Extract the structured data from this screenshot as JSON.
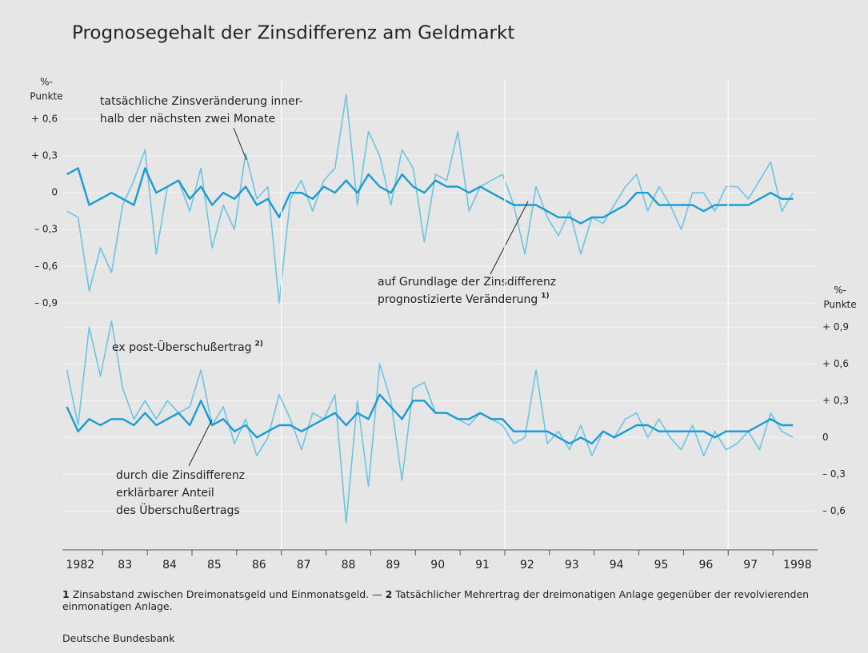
{
  "chart_data": [
    {
      "type": "line",
      "title": "Prognosegehalt der Zinsdifferenz am Geldmarkt",
      "ylabel": [
        "%-",
        "Punkte"
      ],
      "yaxis_side": "left",
      "xlim": [
        1982.1,
        1999.0
      ],
      "ylim": [
        -0.95,
        0.9
      ],
      "yticks": [
        {
          "value": 0.6,
          "label": "+ 0,6"
        },
        {
          "value": 0.3,
          "label": "+ 0,3"
        },
        0,
        {
          "value": -0.3,
          "label": "– 0,3"
        },
        {
          "value": -0.6,
          "label": "– 0,6"
        },
        {
          "value": -0.9,
          "label": "– 0,9"
        }
      ],
      "grid": true,
      "x": [
        1982.2,
        1982.45,
        1982.7,
        1982.95,
        1983.2,
        1983.45,
        1983.7,
        1983.95,
        1984.2,
        1984.45,
        1984.7,
        1984.95,
        1985.2,
        1985.45,
        1985.7,
        1985.95,
        1986.2,
        1986.45,
        1986.7,
        1986.95,
        1987.2,
        1987.45,
        1987.7,
        1987.95,
        1988.2,
        1988.45,
        1988.7,
        1988.95,
        1989.2,
        1989.45,
        1989.7,
        1989.95,
        1990.2,
        1990.45,
        1990.7,
        1990.95,
        1991.2,
        1991.45,
        1991.7,
        1991.95,
        1992.2,
        1992.45,
        1992.7,
        1992.95,
        1993.2,
        1993.45,
        1993.7,
        1993.95,
        1994.2,
        1994.45,
        1994.7,
        1994.95,
        1995.2,
        1995.45,
        1995.7,
        1995.95,
        1996.2,
        1996.45,
        1996.7,
        1996.95,
        1997.2,
        1997.45,
        1997.7,
        1997.95,
        1998.2,
        1998.45
      ],
      "series": [
        {
          "name": [
            "tatsächliche Zinsveränderung inner-",
            "halb der nächsten zwei Monate"
          ],
          "color": "#6cc4e4",
          "width": 1.6,
          "values": [
            -0.15,
            -0.2,
            -0.8,
            -0.45,
            -0.65,
            -0.1,
            0.1,
            0.35,
            -0.5,
            0.05,
            0.1,
            -0.15,
            0.2,
            -0.45,
            -0.1,
            -0.3,
            0.32,
            -0.05,
            0.05,
            -0.9,
            -0.05,
            0.1,
            -0.15,
            0.1,
            0.2,
            0.8,
            -0.1,
            0.5,
            0.3,
            -0.1,
            0.35,
            0.2,
            -0.4,
            0.15,
            0.1,
            0.5,
            -0.15,
            0.05,
            0.1,
            0.15,
            -0.1,
            -0.5,
            0.05,
            -0.2,
            -0.35,
            -0.15,
            -0.5,
            -0.2,
            -0.25,
            -0.1,
            0.05,
            0.15,
            -0.15,
            0.05,
            -0.1,
            -0.3,
            0.0,
            0.0,
            -0.15,
            0.05,
            0.05,
            -0.05,
            0.1,
            0.25,
            -0.15,
            0.0
          ]
        },
        {
          "name": [
            "auf Grundlage der Zinsdifferenz",
            "prognostizierte Veränderung"
          ],
          "note": "1)",
          "color": "#1b9bd3",
          "width": 2.4,
          "values": [
            0.15,
            0.2,
            -0.1,
            -0.05,
            0.0,
            -0.05,
            -0.1,
            0.2,
            0.0,
            0.05,
            0.1,
            -0.05,
            0.05,
            -0.1,
            0.0,
            -0.05,
            0.05,
            -0.1,
            -0.05,
            -0.2,
            0.0,
            0.0,
            -0.05,
            0.05,
            0.0,
            0.1,
            0.0,
            0.15,
            0.05,
            0.0,
            0.15,
            0.05,
            0.0,
            0.1,
            0.05,
            0.05,
            0.0,
            0.05,
            0.0,
            -0.05,
            -0.1,
            -0.1,
            -0.1,
            -0.15,
            -0.2,
            -0.2,
            -0.25,
            -0.2,
            -0.2,
            -0.15,
            -0.1,
            0.0,
            0.0,
            -0.1,
            -0.1,
            -0.1,
            -0.1,
            -0.15,
            -0.1,
            -0.1,
            -0.1,
            -0.1,
            -0.05,
            0.0,
            -0.05,
            -0.05
          ]
        }
      ]
    },
    {
      "type": "line",
      "ylabel": [
        "%-",
        "Punkte"
      ],
      "yaxis_side": "right",
      "xlim": [
        1982.1,
        1999.0
      ],
      "ylim": [
        -0.8,
        1.0
      ],
      "yticks": [
        {
          "value": 0.9,
          "label": "+ 0,9"
        },
        {
          "value": 0.6,
          "label": "+ 0,6"
        },
        {
          "value": 0.3,
          "label": "+ 0,3"
        },
        0,
        {
          "value": -0.3,
          "label": "– 0,3"
        },
        {
          "value": -0.6,
          "label": "– 0,6"
        }
      ],
      "grid": true,
      "xticks": [
        {
          "value": 1982.5,
          "label": "1982"
        },
        {
          "value": 1983.5,
          "label": "83"
        },
        {
          "value": 1984.5,
          "label": "84"
        },
        {
          "value": 1985.5,
          "label": "85"
        },
        {
          "value": 1986.5,
          "label": "86"
        },
        {
          "value": 1987.5,
          "label": "87"
        },
        {
          "value": 1988.5,
          "label": "88"
        },
        {
          "value": 1989.5,
          "label": "89"
        },
        {
          "value": 1990.5,
          "label": "90"
        },
        {
          "value": 1991.5,
          "label": "91"
        },
        {
          "value": 1992.5,
          "label": "92"
        },
        {
          "value": 1993.5,
          "label": "93"
        },
        {
          "value": 1994.5,
          "label": "94"
        },
        {
          "value": 1995.5,
          "label": "95"
        },
        {
          "value": 1996.5,
          "label": "96"
        },
        {
          "value": 1997.5,
          "label": "97"
        },
        {
          "value": 1998.55,
          "label": "1998"
        }
      ],
      "xminor": [
        1983,
        1984,
        1985,
        1986,
        1987,
        1988,
        1989,
        1990,
        1991,
        1992,
        1993,
        1994,
        1995,
        1996,
        1997,
        1998
      ],
      "xgrid": [
        1987,
        1992,
        1997
      ],
      "x": [
        1982.2,
        1982.45,
        1982.7,
        1982.95,
        1983.2,
        1983.45,
        1983.7,
        1983.95,
        1984.2,
        1984.45,
        1984.7,
        1984.95,
        1985.2,
        1985.45,
        1985.7,
        1985.95,
        1986.2,
        1986.45,
        1986.7,
        1986.95,
        1987.2,
        1987.45,
        1987.7,
        1987.95,
        1988.2,
        1988.45,
        1988.7,
        1988.95,
        1989.2,
        1989.45,
        1989.7,
        1989.95,
        1990.2,
        1990.45,
        1990.7,
        1990.95,
        1991.2,
        1991.45,
        1991.7,
        1991.95,
        1992.2,
        1992.45,
        1992.7,
        1992.95,
        1993.2,
        1993.45,
        1993.7,
        1993.95,
        1994.2,
        1994.45,
        1994.7,
        1994.95,
        1995.2,
        1995.45,
        1995.7,
        1995.95,
        1996.2,
        1996.45,
        1996.7,
        1996.95,
        1997.2,
        1997.45,
        1997.7,
        1997.95,
        1998.2,
        1998.45
      ],
      "series": [
        {
          "name": [
            "ex post-Überschußertrag"
          ],
          "note": "2)",
          "color": "#6cc4e4",
          "width": 1.6,
          "values": [
            0.55,
            0.1,
            0.9,
            0.5,
            0.95,
            0.4,
            0.15,
            0.3,
            0.15,
            0.3,
            0.2,
            0.25,
            0.55,
            0.1,
            0.25,
            -0.05,
            0.15,
            -0.15,
            0.0,
            0.35,
            0.15,
            -0.1,
            0.2,
            0.15,
            0.35,
            -0.7,
            0.3,
            -0.4,
            0.6,
            0.3,
            -0.35,
            0.4,
            0.45,
            0.2,
            0.2,
            0.15,
            0.1,
            0.2,
            0.15,
            0.1,
            -0.05,
            0.0,
            0.55,
            -0.05,
            0.05,
            -0.1,
            0.1,
            -0.15,
            0.05,
            0.0,
            0.15,
            0.2,
            0.0,
            0.15,
            0.0,
            -0.1,
            0.1,
            -0.15,
            0.05,
            -0.1,
            -0.05,
            0.05,
            -0.1,
            0.2,
            0.05,
            0.0
          ]
        },
        {
          "name": [
            "durch die Zinsdifferenz",
            "erklärbarer Anteil",
            "des Überschußertrags"
          ],
          "color": "#1b9bd3",
          "width": 2.4,
          "values": [
            0.25,
            0.05,
            0.15,
            0.1,
            0.15,
            0.15,
            0.1,
            0.2,
            0.1,
            0.15,
            0.2,
            0.1,
            0.3,
            0.1,
            0.15,
            0.05,
            0.1,
            0.0,
            0.05,
            0.1,
            0.1,
            0.05,
            0.1,
            0.15,
            0.2,
            0.1,
            0.2,
            0.15,
            0.35,
            0.25,
            0.15,
            0.3,
            0.3,
            0.2,
            0.2,
            0.15,
            0.15,
            0.2,
            0.15,
            0.15,
            0.05,
            0.05,
            0.05,
            0.05,
            0.0,
            -0.05,
            0.0,
            -0.05,
            0.05,
            0.0,
            0.05,
            0.1,
            0.1,
            0.05,
            0.05,
            0.05,
            0.05,
            0.05,
            0.0,
            0.05,
            0.05,
            0.05,
            0.1,
            0.15,
            0.1,
            0.1
          ]
        }
      ]
    }
  ],
  "footnotes": [
    {
      "number": "1",
      "text": "Zinsabstand zwischen Dreimonatsgeld und Einmonatsgeld."
    },
    {
      "number": "2",
      "text": "Tatsächlicher Mehrertrag der dreimonatigen Anlage gegenüber der revolvierenden einmonatigen Anlage."
    }
  ],
  "footnote_separator": "—",
  "source": "Deutsche Bundesbank"
}
